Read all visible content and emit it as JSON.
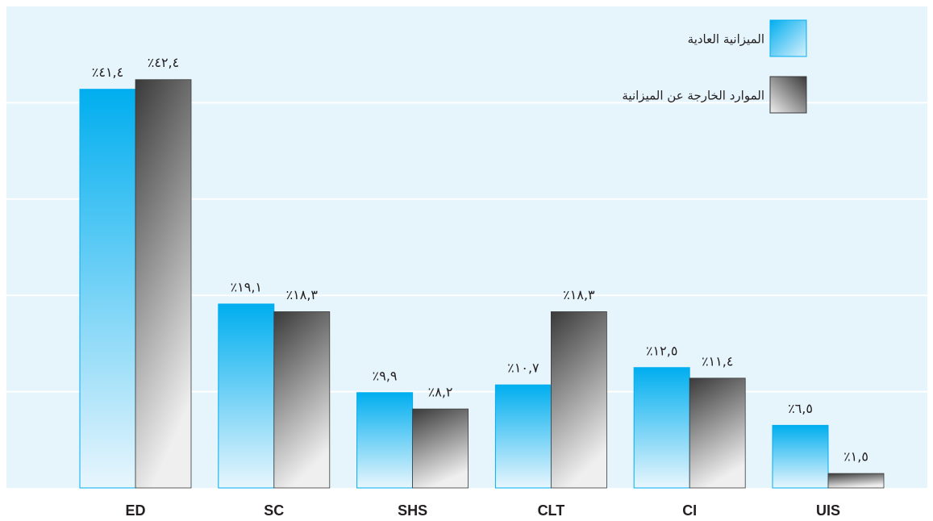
{
  "chart_data": {
    "type": "bar",
    "categories": [
      "ED",
      "SC",
      "SHS",
      "CLT",
      "CI",
      "UIS"
    ],
    "series": [
      {
        "name": "الميزانية العادية",
        "color": "#00aeef",
        "values": [
          41.4,
          19.1,
          9.9,
          10.7,
          12.5,
          6.5
        ],
        "value_labels": [
          "٪٤١,٤",
          "٪١٩,١",
          "٪٩,٩",
          "٪١٠,٧",
          "٪١٢,٥",
          "٪٦,٥"
        ]
      },
      {
        "name": "الموارد الخارجة عن الميزانية",
        "color": "#3a3a3a",
        "values": [
          42.4,
          18.3,
          8.2,
          18.3,
          11.4,
          1.5
        ],
        "value_labels": [
          "٪٤٢,٤",
          "٪١٨,٣",
          "٪٨,٢",
          "٪١٨,٣",
          "٪١١,٤",
          "٪١,٥"
        ]
      }
    ],
    "ylim": [
      0,
      50
    ],
    "yticks": [
      10,
      20,
      30,
      40
    ],
    "grid": true,
    "legend": "top-right"
  }
}
